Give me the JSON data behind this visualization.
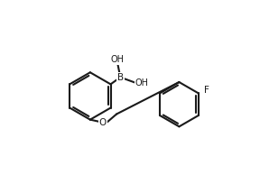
{
  "bg_color": "#ffffff",
  "line_color": "#1a1a1a",
  "line_width": 1.5,
  "font_size_atom": 7.5,
  "label_B": "B",
  "label_OH1": "OH",
  "label_OH2": "OH",
  "label_O": "O",
  "label_F": "F",
  "figsize": [
    2.88,
    1.94
  ],
  "dpi": 100
}
